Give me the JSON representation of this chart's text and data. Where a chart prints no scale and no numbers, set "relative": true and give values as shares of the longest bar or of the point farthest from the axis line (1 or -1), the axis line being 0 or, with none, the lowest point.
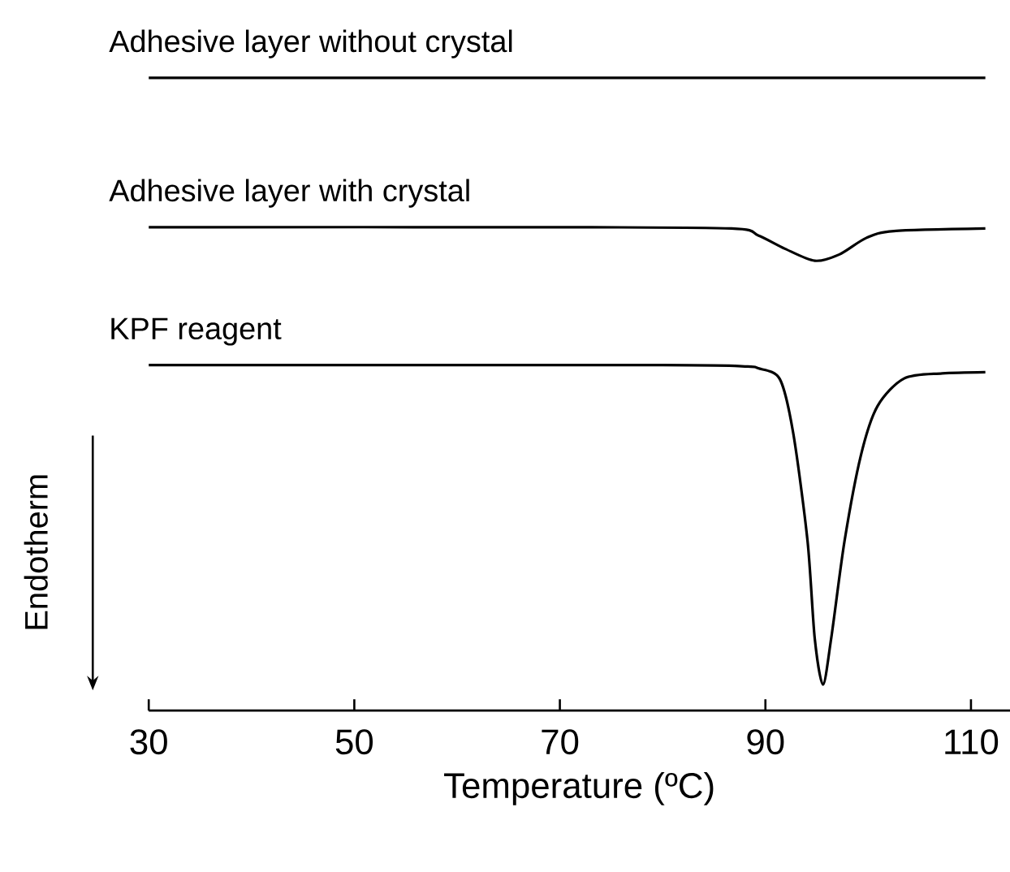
{
  "chart_data": {
    "type": "line",
    "xlabel": "Temperature (ºC)",
    "ylabel": "Endotherm",
    "relative": true,
    "xlim": [
      30,
      113.8
    ],
    "xticks": [
      30,
      50,
      70,
      90,
      110
    ],
    "grid": false,
    "marker": "none",
    "line_style": "solid",
    "tick_labels": "x",
    "series": [
      {
        "name": "Adhesive layer without crystal",
        "color": "#000000",
        "x": [
          30,
          70,
          111.4
        ],
        "values": [
          1,
          1,
          1
        ]
      },
      {
        "name": "Adhesive layer with crystal",
        "color": "#000000",
        "x": [
          30,
          70,
          86.7,
          89.3,
          91.9,
          94.8,
          97.2,
          99.8,
          102.5,
          111.4
        ],
        "values": [
          0.764,
          0.764,
          0.762,
          0.751,
          0.73,
          0.711,
          0.721,
          0.747,
          0.758,
          0.762
        ]
      },
      {
        "name": "KPF reagent",
        "color": "#000000",
        "x": [
          30,
          80,
          88,
          89.3,
          91.4,
          92.7,
          94.1,
          94.8,
          95.6,
          96.4,
          97.7,
          99.3,
          100.9,
          103.5,
          107.2,
          111.4
        ],
        "values": [
          0.546,
          0.546,
          0.544,
          0.541,
          0.524,
          0.439,
          0.268,
          0.114,
          0.041,
          0.114,
          0.268,
          0.404,
          0.481,
          0.525,
          0.533,
          0.535
        ]
      }
    ]
  }
}
